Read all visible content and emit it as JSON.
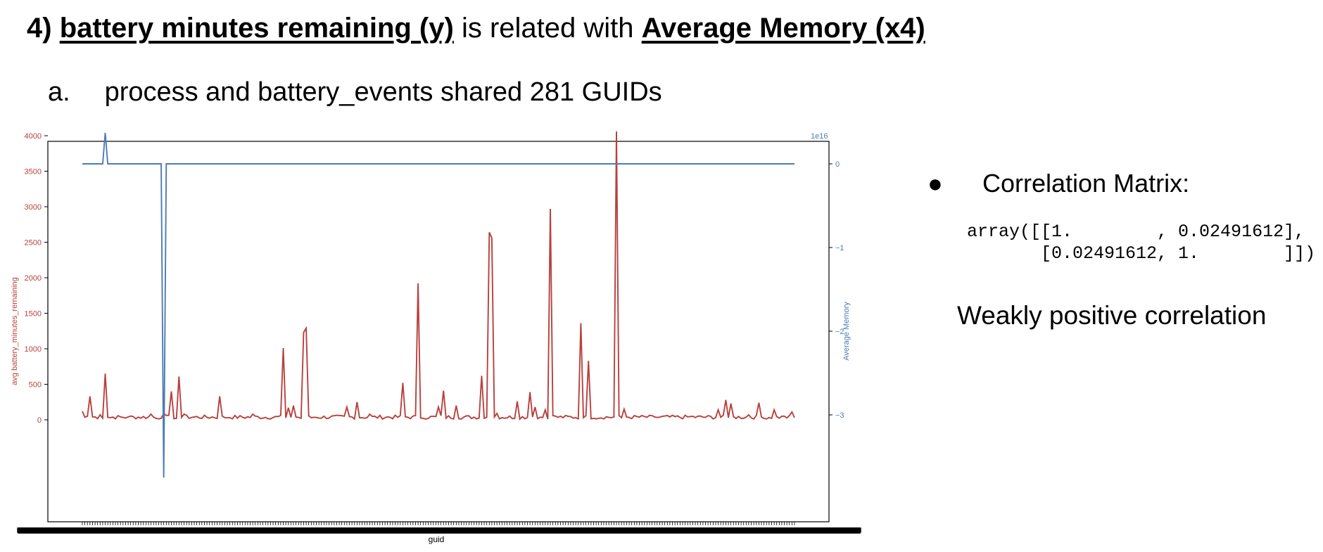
{
  "heading": {
    "number": "4)",
    "y_label": "battery minutes remaining (y)",
    "middle": " is related with ",
    "x_label": "Average Memory (x4)"
  },
  "subheading": {
    "marker": "a.",
    "text": "process and battery_events shared 281 GUIDs"
  },
  "side": {
    "bullet": "●",
    "title": "Correlation Matrix:",
    "matrix_line1": "array([[1.        , 0.02491612],",
    "matrix_line2": "       [0.02491612, 1.        ]])",
    "conclusion": "Weakly positive correlation"
  },
  "colors": {
    "battery": "#b7413e",
    "memory": "#4d7bb4",
    "axis": "#000000"
  },
  "chart_data": {
    "type": "line",
    "xlabel": "guid",
    "x_count": 281,
    "series": [
      {
        "axis": "left",
        "ylabel": "avg battery_minutes_remaining",
        "ylim": [
          0,
          4100
        ],
        "yticks": [
          0,
          500,
          1000,
          1500,
          2000,
          2500,
          3000,
          3500,
          4000
        ],
        "peaks": [
          {
            "x": 0,
            "y": 120
          },
          {
            "x": 2,
            "y": 50
          },
          {
            "x": 3,
            "y": 330
          },
          {
            "x": 5,
            "y": 40
          },
          {
            "x": 7,
            "y": 70
          },
          {
            "x": 9,
            "y": 650
          },
          {
            "x": 11,
            "y": 30
          },
          {
            "x": 18,
            "y": 40
          },
          {
            "x": 27,
            "y": 80
          },
          {
            "x": 31,
            "y": 20
          },
          {
            "x": 32,
            "y": 90
          },
          {
            "x": 35,
            "y": 400
          },
          {
            "x": 37,
            "y": 20
          },
          {
            "x": 38,
            "y": 610
          },
          {
            "x": 40,
            "y": 80
          },
          {
            "x": 54,
            "y": 330
          },
          {
            "x": 56,
            "y": 30
          },
          {
            "x": 67,
            "y": 80
          },
          {
            "x": 79,
            "y": 1010
          },
          {
            "x": 81,
            "y": 170
          },
          {
            "x": 83,
            "y": 200
          },
          {
            "x": 86,
            "y": 20
          },
          {
            "x": 87,
            "y": 1230
          },
          {
            "x": 88,
            "y": 1290
          },
          {
            "x": 90,
            "y": 30
          },
          {
            "x": 104,
            "y": 180
          },
          {
            "x": 108,
            "y": 250
          },
          {
            "x": 113,
            "y": 80
          },
          {
            "x": 126,
            "y": 520
          },
          {
            "x": 132,
            "y": 1920
          },
          {
            "x": 134,
            "y": 20
          },
          {
            "x": 140,
            "y": 180
          },
          {
            "x": 142,
            "y": 410
          },
          {
            "x": 147,
            "y": 200
          },
          {
            "x": 157,
            "y": 620
          },
          {
            "x": 158,
            "y": 20
          },
          {
            "x": 160,
            "y": 2640
          },
          {
            "x": 161,
            "y": 2560
          },
          {
            "x": 162,
            "y": 40
          },
          {
            "x": 163,
            "y": 90
          },
          {
            "x": 171,
            "y": 260
          },
          {
            "x": 176,
            "y": 390
          },
          {
            "x": 177,
            "y": 40
          },
          {
            "x": 178,
            "y": 180
          },
          {
            "x": 182,
            "y": 140
          },
          {
            "x": 184,
            "y": 2970
          },
          {
            "x": 185,
            "y": 60
          },
          {
            "x": 196,
            "y": 1360
          },
          {
            "x": 197,
            "y": 30
          },
          {
            "x": 199,
            "y": 830
          },
          {
            "x": 201,
            "y": 20
          },
          {
            "x": 210,
            "y": 4060
          },
          {
            "x": 212,
            "y": 30
          },
          {
            "x": 213,
            "y": 150
          },
          {
            "x": 225,
            "y": 40
          },
          {
            "x": 240,
            "y": 50
          },
          {
            "x": 250,
            "y": 140
          },
          {
            "x": 253,
            "y": 280
          },
          {
            "x": 254,
            "y": 30
          },
          {
            "x": 255,
            "y": 230
          },
          {
            "x": 262,
            "y": 70
          },
          {
            "x": 266,
            "y": 240
          },
          {
            "x": 268,
            "y": 20
          },
          {
            "x": 272,
            "y": 140
          },
          {
            "x": 276,
            "y": 50
          },
          {
            "x": 279,
            "y": 110
          },
          {
            "x": 280,
            "y": 30
          }
        ]
      },
      {
        "axis": "right",
        "ylabel": "Average Memory",
        "scale_label": "1e16",
        "ylim": [
          -3.75,
          0.62
        ],
        "yticks": [
          0,
          -1,
          -2,
          -3
        ],
        "ytick_labels": [
          "0",
          "−1",
          "−2",
          "−3"
        ],
        "points": [
          {
            "x": 0,
            "y": 0
          },
          {
            "x": 8,
            "y": 0
          },
          {
            "x": 9,
            "y": 0.37
          },
          {
            "x": 10,
            "y": 0
          },
          {
            "x": 31,
            "y": 0
          },
          {
            "x": 32,
            "y": -3.75
          },
          {
            "x": 33,
            "y": 0
          },
          {
            "x": 280,
            "y": 0
          }
        ]
      }
    ]
  }
}
